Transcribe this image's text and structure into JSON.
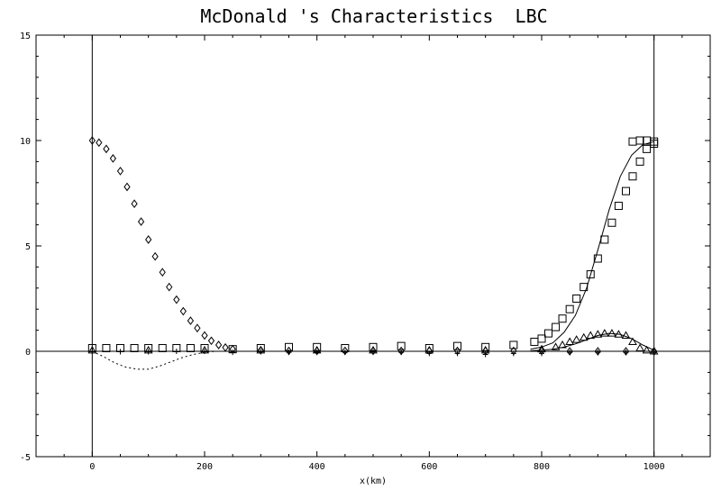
{
  "chart_data": {
    "type": "scatter",
    "title": "McDonald 's Characteristics  LBC",
    "xlabel": "x(km)",
    "ylabel": "",
    "xlim": [
      -100,
      1100
    ],
    "ylim": [
      -5,
      15
    ],
    "x_ticks": [
      0,
      200,
      400,
      600,
      800,
      1000
    ],
    "y_ticks": [
      -5,
      0,
      5,
      10,
      15
    ],
    "x_tick_labels": [
      "0",
      "200",
      "400",
      "600",
      "800",
      "1000"
    ],
    "y_tick_labels": [
      "-5",
      "0",
      "5",
      "10",
      "15"
    ],
    "reference_lines": {
      "vertical_x": [
        0,
        1000
      ],
      "horizontal_y": [
        0
      ]
    },
    "series": [
      {
        "marker": "diamond",
        "style": "markers",
        "x": [
          0,
          12,
          25,
          37,
          50,
          62,
          75,
          87,
          100,
          112,
          125,
          137,
          150,
          162,
          175,
          187,
          200,
          212,
          225,
          237,
          250,
          300,
          350,
          400,
          450,
          500,
          550,
          600,
          650,
          700,
          750,
          800,
          850,
          900,
          950,
          1000
        ],
        "y": [
          10.0,
          9.9,
          9.6,
          9.15,
          8.55,
          7.8,
          7.0,
          6.15,
          5.3,
          4.5,
          3.75,
          3.05,
          2.45,
          1.9,
          1.45,
          1.1,
          0.75,
          0.5,
          0.3,
          0.18,
          0.1,
          0.05,
          0.02,
          0.02,
          0.02,
          0.02,
          0.02,
          0.02,
          0.02,
          0.02,
          0.02,
          0.02,
          0.0,
          0.0,
          0.0,
          0.0
        ]
      },
      {
        "marker": "square",
        "style": "markers",
        "x": [
          0,
          25,
          50,
          75,
          100,
          125,
          150,
          175,
          200,
          250,
          300,
          350,
          400,
          450,
          500,
          550,
          600,
          650,
          700,
          750,
          787,
          800,
          812,
          825,
          837,
          850,
          862,
          875,
          887,
          900,
          912,
          925,
          937,
          950,
          962,
          975,
          987,
          1000
        ],
        "y": [
          0.15,
          0.15,
          0.15,
          0.15,
          0.15,
          0.15,
          0.15,
          0.15,
          0.15,
          0.1,
          0.15,
          0.2,
          0.2,
          0.15,
          0.2,
          0.25,
          0.15,
          0.25,
          0.2,
          0.3,
          0.45,
          0.6,
          0.85,
          1.15,
          1.55,
          2.0,
          2.5,
          3.05,
          3.65,
          4.4,
          5.3,
          6.1,
          6.9,
          7.6,
          8.3,
          9.0,
          9.6,
          9.95
        ]
      },
      {
        "marker": "square",
        "style": "markers",
        "x": [
          962,
          975,
          987,
          1000
        ],
        "y": [
          9.95,
          10.0,
          10.0,
          9.85
        ]
      },
      {
        "marker": "triangle",
        "style": "markers",
        "x": [
          0,
          100,
          200,
          300,
          400,
          500,
          600,
          700,
          800,
          825,
          837,
          850,
          862,
          875,
          887,
          900,
          912,
          925,
          937,
          950,
          962,
          975,
          987,
          1000
        ],
        "y": [
          0.05,
          0.05,
          0.05,
          0.05,
          0.05,
          0.05,
          0.05,
          0.05,
          0.1,
          0.2,
          0.3,
          0.45,
          0.55,
          0.65,
          0.75,
          0.8,
          0.85,
          0.85,
          0.8,
          0.75,
          0.45,
          0.15,
          0.05,
          0.0
        ]
      },
      {
        "marker": "plus",
        "style": "markers",
        "x": [
          0,
          50,
          100,
          150,
          200,
          250,
          300,
          350,
          400,
          450,
          500,
          550,
          600,
          650,
          700,
          750,
          800,
          850,
          900,
          950,
          1000
        ],
        "y": [
          0.0,
          -0.02,
          -0.02,
          0.0,
          0.0,
          -0.05,
          -0.02,
          -0.05,
          -0.05,
          -0.05,
          -0.02,
          -0.05,
          -0.1,
          -0.1,
          -0.15,
          -0.1,
          -0.1,
          -0.05,
          -0.05,
          -0.05,
          -0.05
        ]
      },
      {
        "marker": "none",
        "style": "solid",
        "x": [
          780,
          800,
          820,
          840,
          860,
          880,
          900,
          920,
          940,
          960,
          980,
          1000
        ],
        "y": [
          0.1,
          0.2,
          0.4,
          0.9,
          1.7,
          3.0,
          4.8,
          6.7,
          8.3,
          9.3,
          9.8,
          9.95
        ]
      },
      {
        "marker": "none",
        "style": "solid",
        "x": [
          780,
          800,
          820,
          840,
          860,
          880,
          900,
          920,
          940,
          960,
          980,
          1000
        ],
        "y": [
          0.02,
          0.05,
          0.1,
          0.2,
          0.35,
          0.55,
          0.75,
          0.85,
          0.8,
          0.6,
          0.3,
          0.05
        ]
      },
      {
        "marker": "none",
        "style": "dotted",
        "x": [
          0,
          20,
          40,
          60,
          80,
          100,
          120,
          140,
          160,
          180,
          200,
          220
        ],
        "y": [
          0.0,
          -0.25,
          -0.55,
          -0.75,
          -0.85,
          -0.85,
          -0.7,
          -0.5,
          -0.3,
          -0.15,
          -0.05,
          0.0
        ]
      }
    ]
  }
}
